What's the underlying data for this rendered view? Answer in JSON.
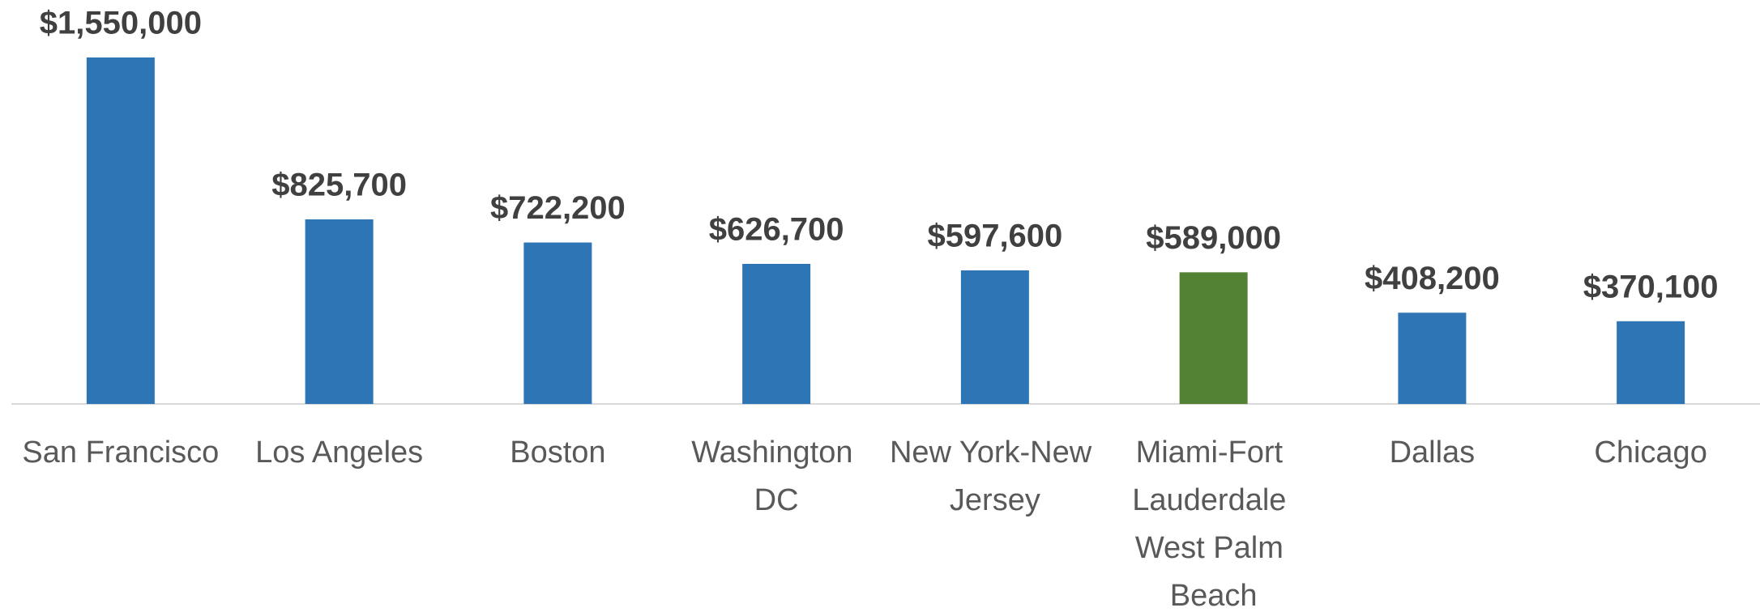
{
  "chart_data": {
    "type": "bar",
    "categories": [
      "San Francisco",
      "Los Angeles",
      "Boston",
      "Washington DC",
      "New York-New Jersey",
      "Miami-Fort Lauderdale West Palm Beach",
      "Dallas",
      "Chicago"
    ],
    "values": [
      1550000,
      825700,
      722200,
      626700,
      597600,
      589000,
      408200,
      370100
    ],
    "value_labels": [
      "$1,550,000",
      "$825,700",
      "$722,200",
      "$626,700",
      "$597,600",
      "$589,000",
      "$408,200",
      "$370,100"
    ],
    "colors": [
      "#2e75b6",
      "#2e75b6",
      "#2e75b6",
      "#2e75b6",
      "#2e75b6",
      "#548235",
      "#2e75b6",
      "#2e75b6"
    ],
    "ylim": [
      0,
      1600000
    ]
  }
}
